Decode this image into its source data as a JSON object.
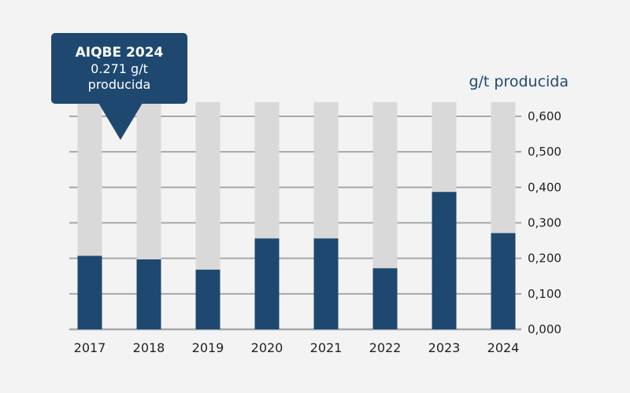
{
  "chart_data": {
    "type": "bar",
    "title": "",
    "ylabel": "g/t producida",
    "xlabel": "",
    "categories": [
      "2017",
      "2018",
      "2019",
      "2020",
      "2021",
      "2022",
      "2023",
      "2024"
    ],
    "values": [
      0.207,
      0.197,
      0.168,
      0.256,
      0.256,
      0.172,
      0.387,
      0.271
    ],
    "ylim": [
      0,
      0.64
    ],
    "yticks": [
      0.0,
      0.1,
      0.2,
      0.3,
      0.4,
      0.5,
      0.6
    ],
    "ytick_labels": [
      "0,000",
      "0,100",
      "0,200",
      "0,300",
      "0,400",
      "0,500",
      "0,600"
    ],
    "y_axis_side": "right",
    "grid": true,
    "background_bars": true,
    "colors": {
      "bar": "#1f4870",
      "track": "#d9d9d9",
      "grid": "#a3a8ab",
      "background": "#f3f3f3"
    },
    "tooltip": {
      "title": "AIQBE 2024",
      "value": "0.271 g/t",
      "unit": "producida",
      "target_category": "2017"
    }
  }
}
